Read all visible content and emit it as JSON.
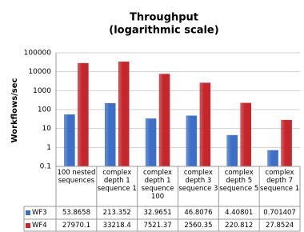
{
  "chart_data": {
    "type": "bar",
    "title": "Throughput",
    "subtitle": "(logarithmic scale)",
    "y_label": "Workflows/sec",
    "categories": [
      "100 nested sequences",
      "complex depth 1 sequence 1",
      "complex depth 1 sequence 100",
      "complex depth 3 sequence 3",
      "complex depth 5 sequence 5",
      "complex depth 7 sequence 1"
    ],
    "series": [
      {
        "name": "WF3",
        "color": "#3d6fc6",
        "values": [
          53.8658,
          213.352,
          32.9651,
          46.8076,
          4.40801,
          0.701407
        ]
      },
      {
        "name": "WF4",
        "color": "#c4262b",
        "values": [
          27970.1,
          33218.4,
          7521.37,
          2560.35,
          220.812,
          27.8524
        ]
      }
    ],
    "ylim": [
      0.1,
      100000
    ],
    "yticks": [
      0.1,
      1,
      10,
      100,
      1000,
      10000,
      100000
    ],
    "log_scale": true,
    "grid": true,
    "data_table": true
  }
}
